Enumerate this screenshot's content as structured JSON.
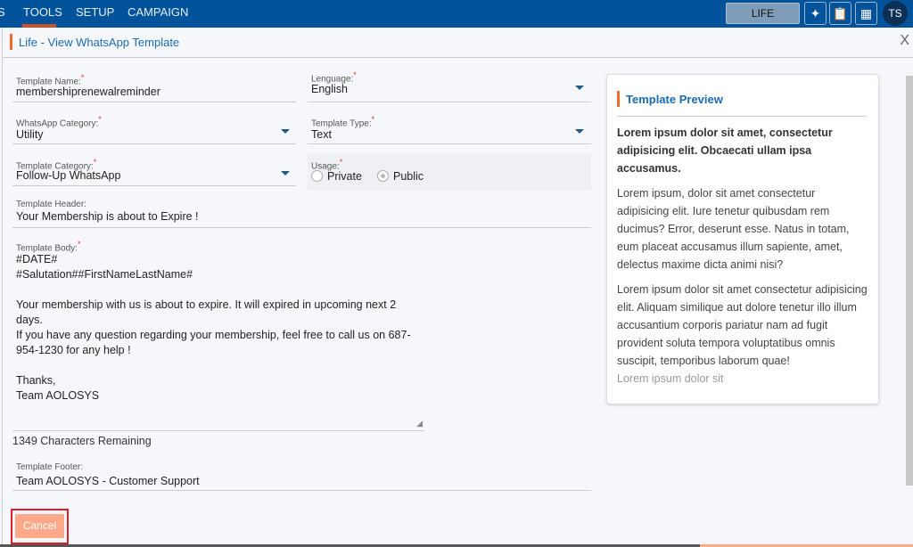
{
  "topbar": {
    "nav": [
      "S",
      "TOOLS",
      "SETUP",
      "CAMPAIGN"
    ],
    "life_label": "LIFE",
    "avatar": "TS",
    "icons": [
      "sparkle-icon",
      "clipboard-add-icon",
      "calendar-icon"
    ]
  },
  "modal": {
    "title": "Life - View WhatsApp Template",
    "close": "X"
  },
  "form": {
    "template_name": {
      "label": "Template Name:",
      "value": "membershiprenewalreminder"
    },
    "language": {
      "label": "Lenguage:",
      "value": "English"
    },
    "whatsapp_category": {
      "label": "WhatsApp Category:",
      "value": "Utility"
    },
    "template_type": {
      "label": "Template Type:",
      "value": "Text"
    },
    "template_category": {
      "label": "Template Category:",
      "value": "Follow-Up WhatsApp"
    },
    "usage": {
      "label": "Usage:",
      "options": [
        "Private",
        "Public"
      ],
      "selected": "Public"
    },
    "template_header": {
      "label": "Template Header:",
      "value": "Your Membership is about to Expire !"
    },
    "template_body": {
      "label": "Template Body:",
      "value": "#DATE#\n#Salutation##FirstNameLastName#\n\nYour membership with us is about to expire. It will expired in upcoming next 2\ndays.\nIf you have any question regarding your membership, feel free to call us on 687-\n954-1230 for any help !\n\nThanks,\nTeam AOLOSYS"
    },
    "chars_remaining": "1349 Characters Remaining",
    "template_footer": {
      "label": "Template Footer:",
      "value": "Team AOLOSYS - Customer Support"
    },
    "required_mark": "*"
  },
  "preview": {
    "title": "Template Preview",
    "heading": "Lorem ipsum dolor sit amet, consectetur adipisicing elit. Obcaecati ullam ipsa accusamus.",
    "para1": "Lorem ipsum, dolor sit amet consectetur adipisicing elit. Iure tenetur quibusdam rem ducimus? Error, deserunt esse. Natus in totam, eum placeat accusamus illum sapiente, amet, delectus maxime dicta animi nisi?",
    "para2": "Lorem ipsum dolor sit amet consectetur adipisicing elit. Aliquam similique aut dolore tenetur illo illum accusantium corporis pariatur nam ad fugit provident soluta tempora voluptatibus omnis suscipit, temporibus laborum quae!",
    "footer": "Lorem ipsum dolor sit"
  },
  "actions": {
    "cancel": "Cancel"
  }
}
